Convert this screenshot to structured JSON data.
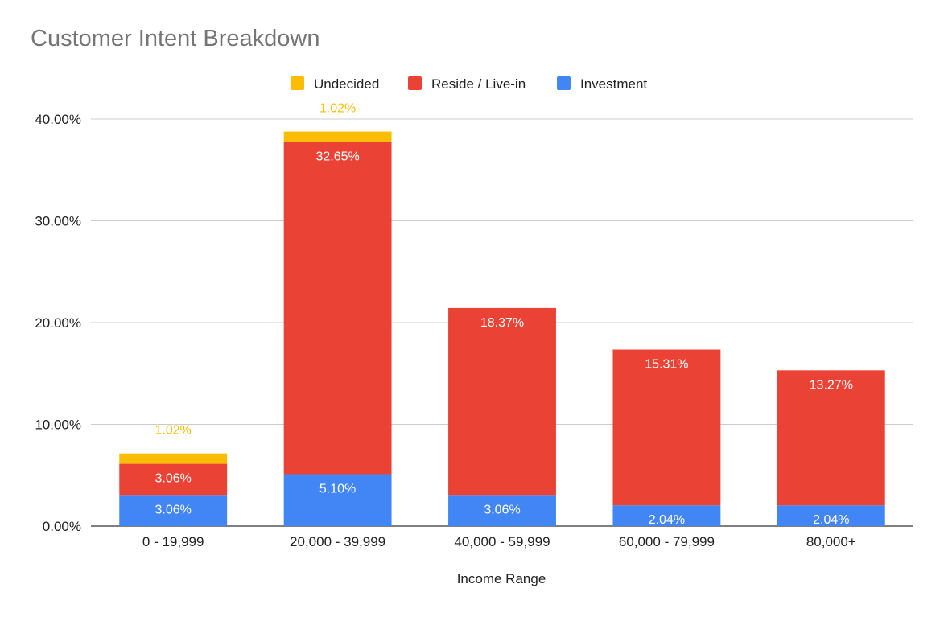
{
  "chart_data": {
    "type": "bar",
    "stacked": true,
    "title": "Customer Intent Breakdown",
    "xlabel": "Income Range",
    "ylabel": "",
    "ylim": [
      0,
      40
    ],
    "yticks": [
      "0.00%",
      "10.00%",
      "20.00%",
      "30.00%",
      "40.00%"
    ],
    "grid": true,
    "legend_position": "top-center",
    "categories": [
      "0 - 19,999",
      "20,000 - 39,999",
      "40,000 - 59,999",
      "60,000 - 79,999",
      "80,000+"
    ],
    "series": [
      {
        "name": "Investment",
        "color": "#4285F4",
        "label_color": "#ffffff",
        "values": [
          3.06,
          5.1,
          3.06,
          2.04,
          2.04
        ],
        "labels": [
          "3.06%",
          "5.10%",
          "3.06%",
          "2.04%",
          "2.04%"
        ]
      },
      {
        "name": "Reside / Live-in",
        "color": "#EA4335",
        "label_color": "#ffffff",
        "values": [
          3.06,
          32.65,
          18.37,
          15.31,
          13.27
        ],
        "labels": [
          "3.06%",
          "32.65%",
          "18.37%",
          "15.31%",
          "13.27%"
        ]
      },
      {
        "name": "Undecided",
        "color": "#FBBC04",
        "label_color": "#FBBC04",
        "values": [
          1.02,
          1.02,
          0,
          0,
          0
        ],
        "labels": [
          "1.02%",
          "1.02%",
          "",
          "",
          ""
        ]
      }
    ],
    "legend_order": [
      "Undecided",
      "Reside / Live-in",
      "Investment"
    ]
  }
}
